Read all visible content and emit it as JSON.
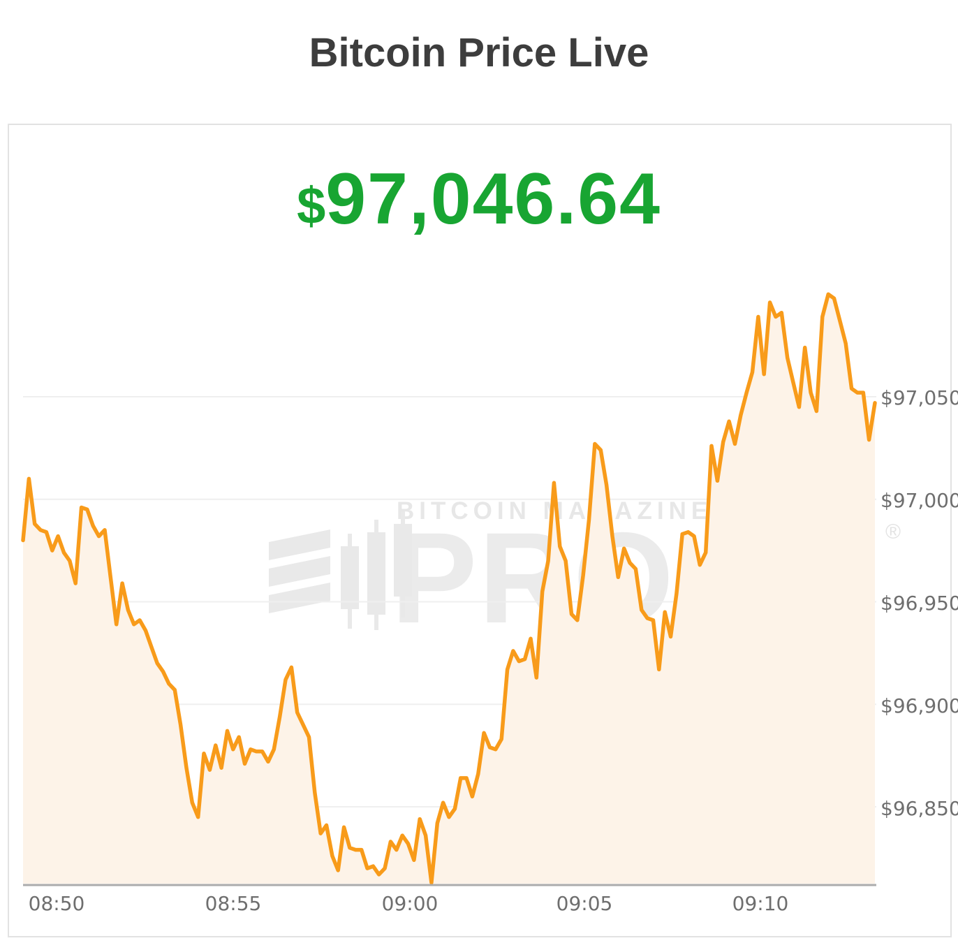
{
  "page": {
    "title": "Bitcoin Price Live"
  },
  "price_display": {
    "currency_symbol": "$",
    "value": "97,046.64"
  },
  "watermark": {
    "line1": "BITCOIN MAGAZINE",
    "line2": "PRO",
    "registered": "®"
  },
  "colors": {
    "price_green": "#18a532",
    "line_orange": "#f89b1a",
    "area_fill": "#fdf3e8",
    "grid_line": "#efefef",
    "axis_line": "#ababab",
    "tick_text": "#6e6e6e",
    "title_text": "#3d3d3d",
    "watermark_gray": "#ebebeb",
    "card_border": "#e2e2e2"
  },
  "chart_data": {
    "type": "area",
    "title": "Bitcoin Price Live",
    "current_price": 97046.64,
    "x_tick_labels": [
      "08:50",
      "08:55",
      "09:00",
      "09:05",
      "09:10"
    ],
    "y_tick_labels": [
      "$97,050",
      "$97,000",
      "$96,950",
      "$96,900",
      "$96,850"
    ],
    "y_tick_values": [
      97050,
      97000,
      96950,
      96900,
      96850
    ],
    "ylim": [
      96805,
      97110
    ],
    "grid": "horizontal-only",
    "legend": "none",
    "start_time": "08:49:00",
    "end_time": "09:13:20",
    "interval_seconds": 10,
    "prices": [
      96980,
      97010,
      96988,
      96985,
      96984,
      96975,
      96982,
      96974,
      96970,
      96959,
      96996,
      96995,
      96987,
      96982,
      96985,
      96962,
      96939,
      96959,
      96946,
      96939,
      96941,
      96936,
      96928,
      96920,
      96916,
      96910,
      96907,
      96890,
      96869,
      96852,
      96845,
      96876,
      96868,
      96880,
      96869,
      96887,
      96878,
      96884,
      96871,
      96878,
      96877,
      96877,
      96872,
      96878,
      96894,
      96912,
      96918,
      96896,
      96890,
      96884,
      96857,
      96837,
      96841,
      96826,
      96819,
      96840,
      96830,
      96829,
      96829,
      96820,
      96821,
      96817,
      96820,
      96833,
      96829,
      96836,
      96832,
      96824,
      96844,
      96836,
      96813,
      96842,
      96852,
      96845,
      96849,
      96864,
      96864,
      96855,
      96866,
      96886,
      96879,
      96878,
      96883,
      96917,
      96926,
      96921,
      96922,
      96932,
      96913,
      96955,
      96970,
      97008,
      96977,
      96970,
      96944,
      96941,
      96963,
      96990,
      97027,
      97024,
      97007,
      96982,
      96962,
      96976,
      96969,
      96966,
      96946,
      96942,
      96941,
      96917,
      96945,
      96933,
      96954,
      96983,
      96984,
      96982,
      96968,
      96974,
      97026,
      97009,
      97028,
      97038,
      97027,
      97041,
      97052,
      97062,
      97089,
      97061,
      97096,
      97089,
      97091,
      97069,
      97057,
      97045,
      97074,
      97052,
      97043,
      97089,
      97100,
      97098,
      97087,
      97076,
      97054,
      97052,
      97052,
      97029,
      97047
    ],
    "line_color": "#f89b1a",
    "fill_color": "#fdf3e8"
  }
}
